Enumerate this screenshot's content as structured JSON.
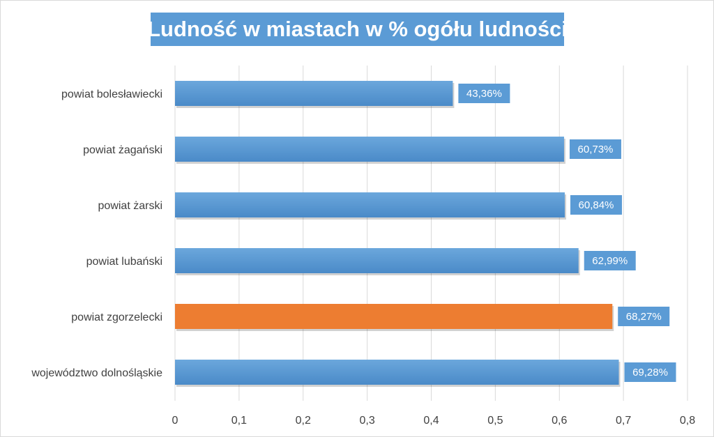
{
  "chart_data": {
    "type": "bar",
    "orientation": "horizontal",
    "title": "Ludność w miastach w % ogółu ludności",
    "categories": [
      "powiat bolesławiecki",
      "powiat żagański",
      "powiat żarski",
      "powiat lubański",
      "powiat zgorzelecki",
      "województwo dolnośląskie"
    ],
    "values": [
      0.4336,
      0.6073,
      0.6084,
      0.6299,
      0.6827,
      0.6928
    ],
    "data_labels": [
      "43,36%",
      "60,73%",
      "60,84%",
      "62,99%",
      "68,27%",
      "69,28%"
    ],
    "bar_colors": [
      "#5b9bd5",
      "#5b9bd5",
      "#5b9bd5",
      "#5b9bd5",
      "#ed7d31",
      "#5b9bd5"
    ],
    "highlight_category": "powiat zgorzelecki",
    "xlim": [
      0,
      0.8
    ],
    "xticks": [
      0,
      0.1,
      0.2,
      0.3,
      0.4,
      0.5,
      0.6,
      0.7,
      0.8
    ],
    "xtick_labels": [
      "0",
      "0,1",
      "0,2",
      "0,3",
      "0,4",
      "0,5",
      "0,6",
      "0,7",
      "0,8"
    ],
    "grid": true,
    "legend": "none"
  },
  "colors": {
    "accent": "#5b9bd5",
    "highlight": "#ed7d31",
    "label_box": "#5b9bd5",
    "gridline": "#d9d9d9",
    "text": "#404040"
  }
}
